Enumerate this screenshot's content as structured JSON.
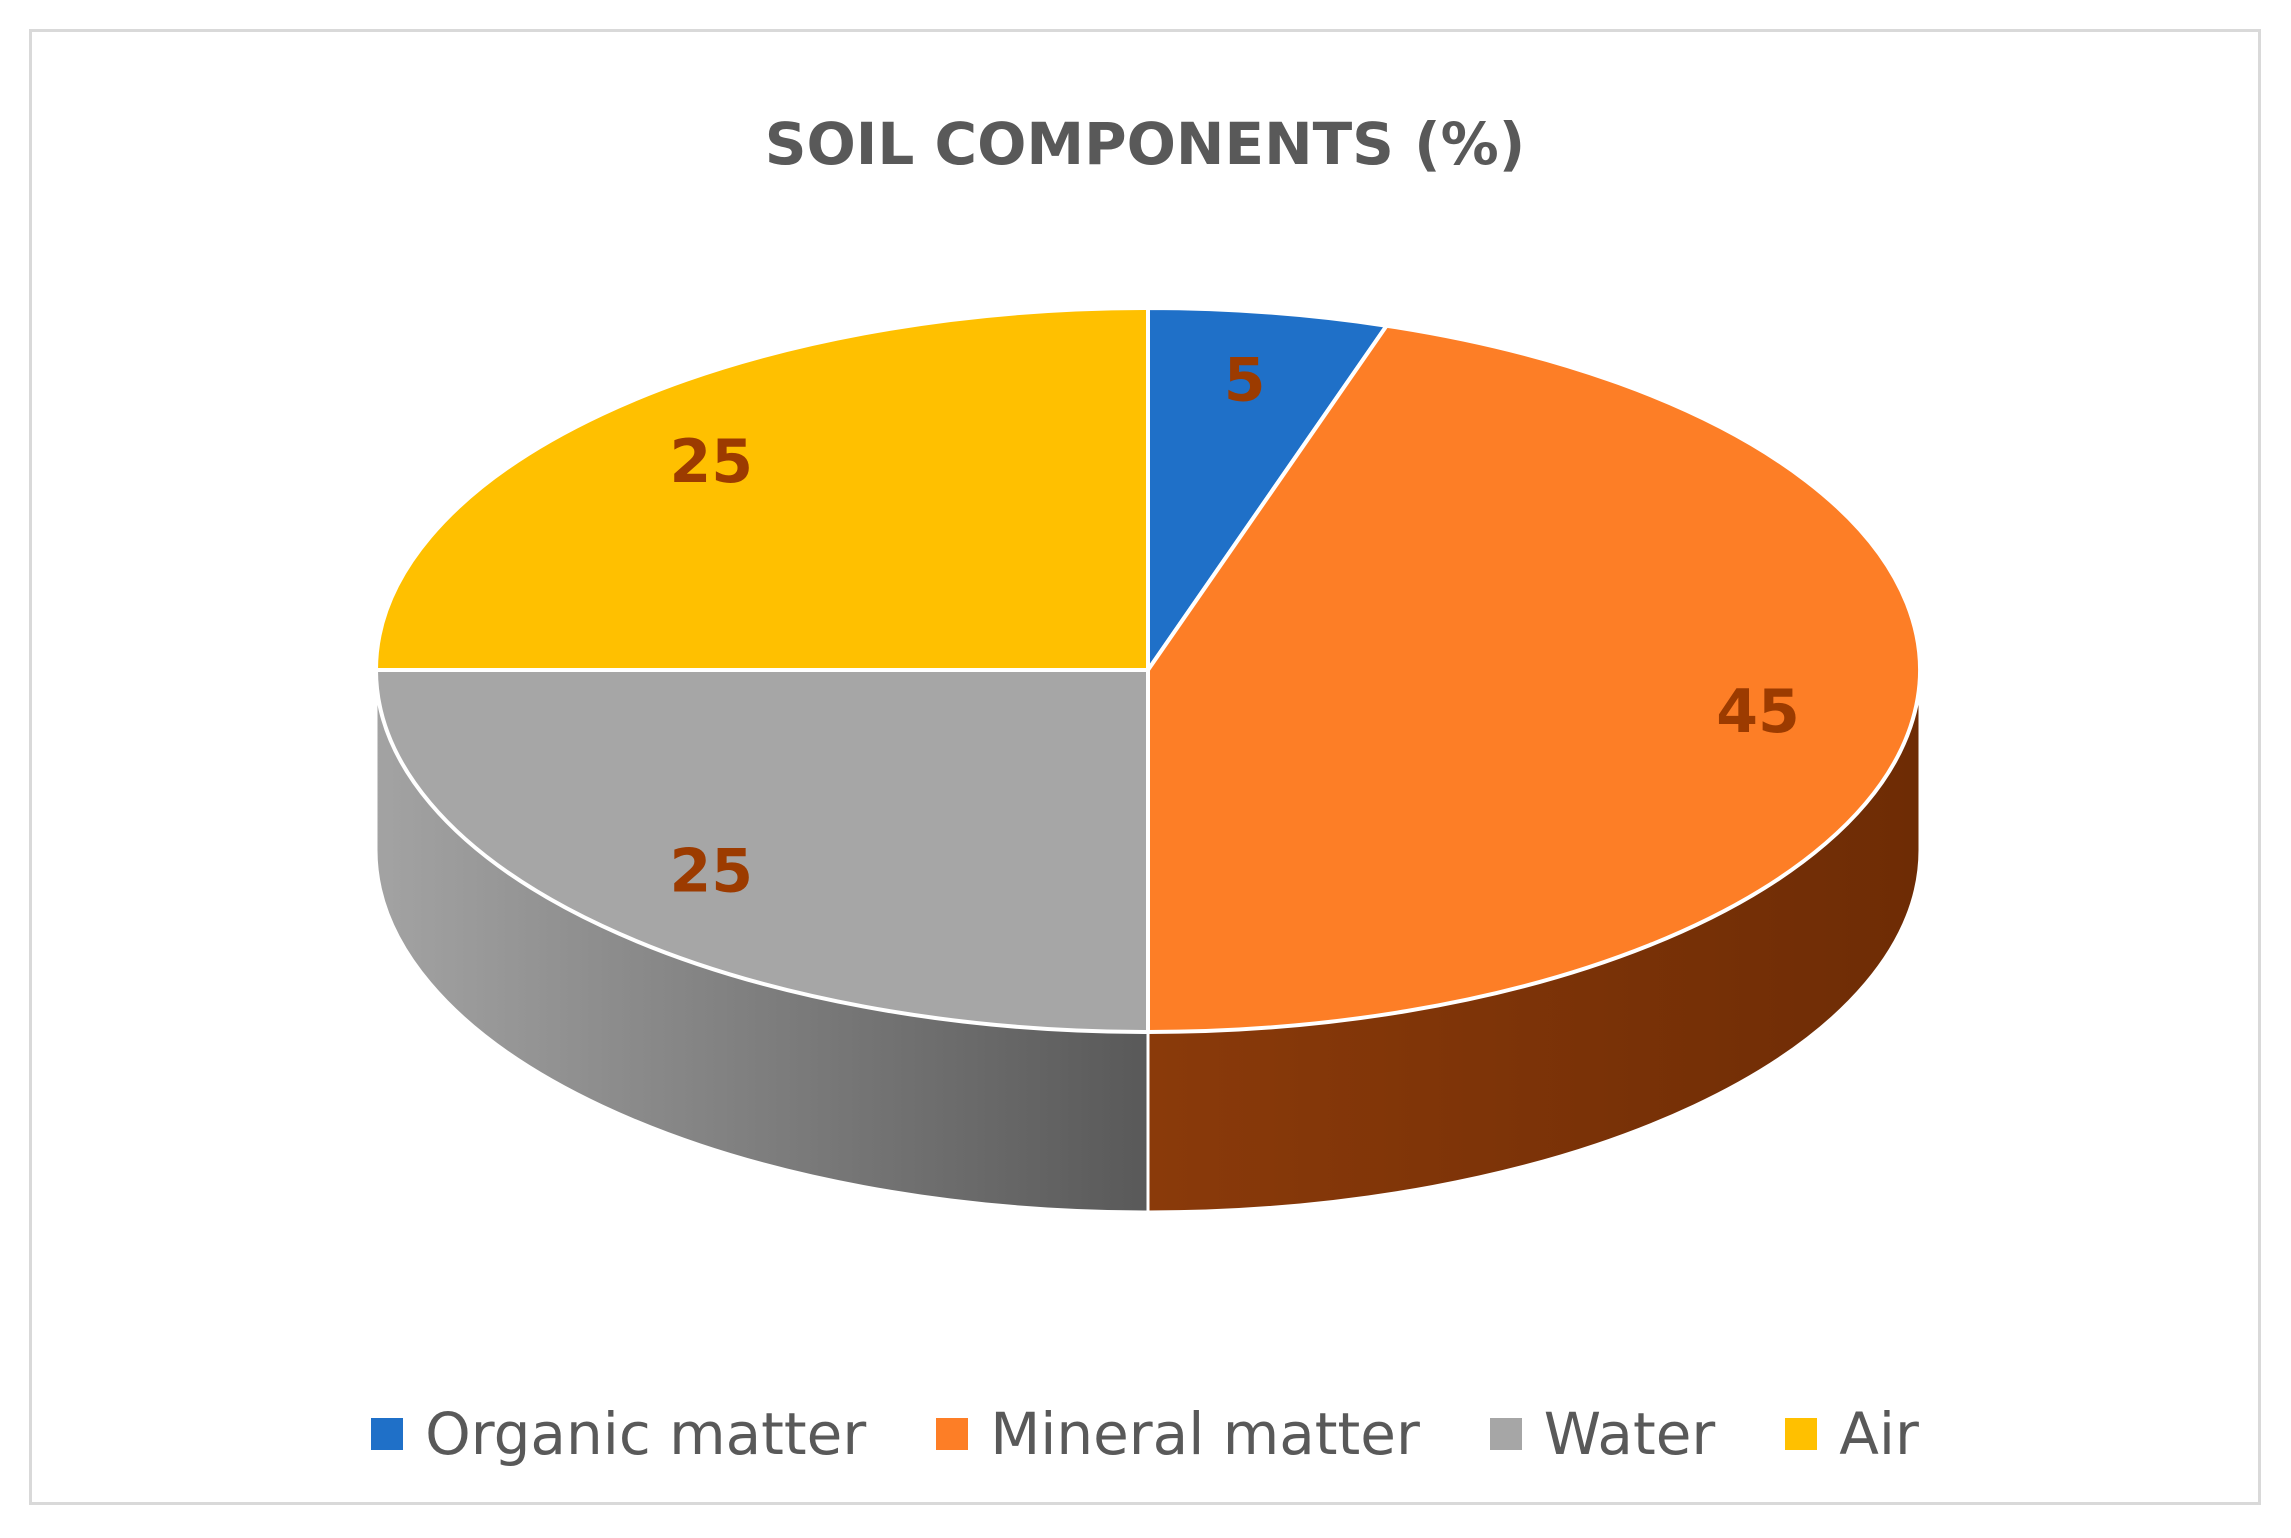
{
  "chart_data": {
    "type": "pie",
    "title": "SOIL COMPONENTS (%)",
    "categories": [
      "Organic matter",
      "Mineral matter",
      "Water",
      "Air"
    ],
    "values": [
      5,
      45,
      25,
      25
    ],
    "colors": [
      "#1f70c8",
      "#fd7e26",
      "#a6a6a6",
      "#ffc000"
    ],
    "side_colors_dark": [
      "#0e3a6e",
      "#6e2c05",
      "#595959",
      "#8a6a00"
    ],
    "side_colors_light": [
      "#2a6fc0",
      "#8a3a0a",
      "#a3a3a3",
      "#c99a00"
    ],
    "data_labels": [
      "5",
      "45",
      "25",
      "25"
    ],
    "label_color": "#9c3b00",
    "legend_position": "bottom",
    "style": "3d-pie"
  }
}
